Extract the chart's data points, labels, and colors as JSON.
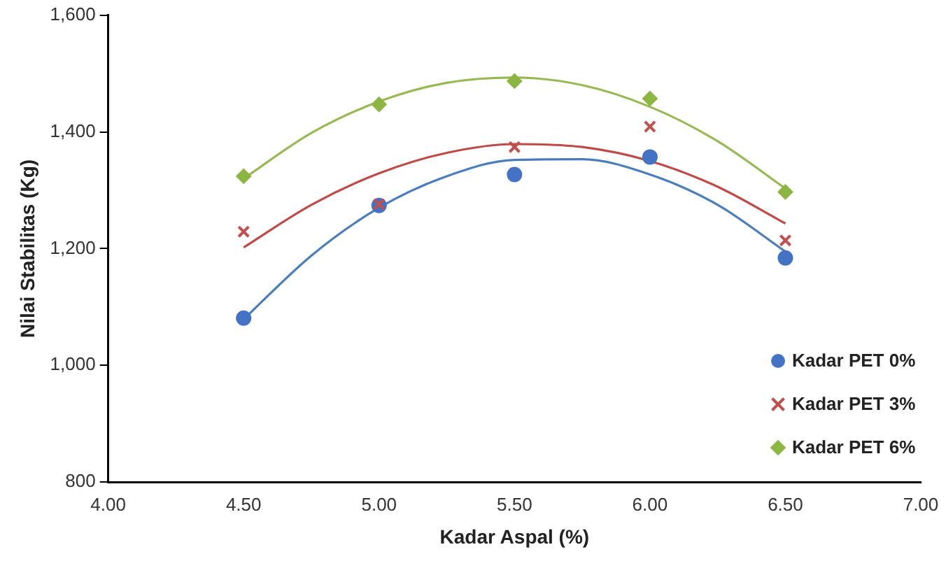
{
  "chart_data": {
    "type": "scatter",
    "xlabel": "Kadar Aspal (%)",
    "ylabel": "Nilai Stabilitas (Kg)",
    "xlim": [
      4,
      7
    ],
    "xticks": [
      {
        "value": 4,
        "label": "4.00"
      },
      {
        "value": 4.5,
        "label": "4.50"
      },
      {
        "value": 5,
        "label": "5.00"
      },
      {
        "value": 5.5,
        "label": "5.50"
      },
      {
        "value": 6,
        "label": "6.00"
      },
      {
        "value": 6.5,
        "label": "6.50"
      },
      {
        "value": 7,
        "label": "7.00"
      }
    ],
    "ylim": [
      800,
      1600
    ],
    "yticks": [
      {
        "value": 800,
        "label": "800"
      },
      {
        "value": 1000,
        "label": "1,000"
      },
      {
        "value": 1200,
        "label": "1,200"
      },
      {
        "value": 1400,
        "label": "1,400"
      },
      {
        "value": 1600,
        "label": "1,600"
      }
    ],
    "grid": false,
    "legend": "bottom right",
    "x": [
      4.5,
      5,
      5.5,
      6,
      6.5
    ],
    "series": [
      {
        "name": "Kadar PET 0%",
        "type": "scatter",
        "marker": "circle",
        "color": "#4472c4",
        "values": [
          1081,
          1274,
          1327,
          1357,
          1184
        ]
      },
      {
        "name": "Kadar PET 3%",
        "type": "scatter",
        "marker": "cross",
        "color": "#c0504d",
        "values": [
          1229,
          1276,
          1374,
          1409,
          1214
        ]
      },
      {
        "name": "Kadar PET 6%",
        "type": "scatter",
        "marker": "diamond",
        "color": "#8db542",
        "values": [
          1324,
          1447,
          1487,
          1457,
          1297
        ]
      },
      {
        "type": "line",
        "marker": "none",
        "color": "#4a7ebb",
        "x": [
          4.5,
          4.75,
          5,
          5.25,
          5.5,
          5.75,
          6,
          6.25,
          6.5
        ],
        "values": [
          1079,
          1188,
          1270,
          1324,
          1352,
          1353,
          1327,
          1275,
          1195
        ]
      },
      {
        "type": "line",
        "marker": "none",
        "color": "#be4b48",
        "x": [
          4.5,
          4.75,
          5,
          5.25,
          5.5,
          5.75,
          6,
          6.25,
          6.5
        ],
        "values": [
          1202,
          1275,
          1329,
          1364,
          1379,
          1374,
          1350,
          1306,
          1243
        ]
      },
      {
        "type": "line",
        "marker": "none",
        "color": "#98b954",
        "x": [
          4.5,
          4.75,
          5,
          5.25,
          5.5,
          5.75,
          6,
          6.25,
          6.5
        ],
        "values": [
          1320,
          1398,
          1452,
          1484,
          1493,
          1480,
          1443,
          1384,
          1303
        ]
      }
    ]
  }
}
